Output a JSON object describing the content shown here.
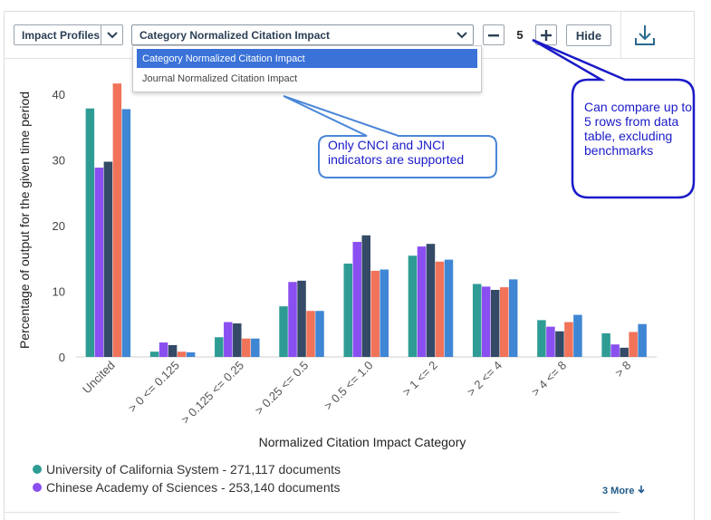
{
  "toolbar": {
    "impact_profiles_label": "Impact Profiles",
    "metric_selected": "Category Normalized Citation Impact",
    "stepper_value": "5",
    "minus_label": "−",
    "plus_label": "+",
    "hide_label": "Hide"
  },
  "dropdown": {
    "options": [
      "Category Normalized Citation Impact",
      "Journal Normalized Citation Impact"
    ]
  },
  "callouts": {
    "supported": "Only CNCI and JNCI indicators are supported",
    "compare": "Can compare up to 5 rows from data table, excluding benchmarks"
  },
  "chart_data": {
    "type": "bar",
    "ylabel": "Percentage of output for the given time period",
    "xlabel": "Normalized Citation Impact Category",
    "ylim": [
      0,
      43
    ],
    "yticks": [
      0,
      10,
      20,
      30,
      40
    ],
    "categories": [
      "Uncited",
      "> 0 <= 0.125",
      "> 0.125 <= 0.25",
      "> 0.25 <= 0.5",
      "> 0.5 <= 1.0",
      "> 1 <= 2",
      "> 2 <= 4",
      "> 4 <= 8",
      "> 8"
    ],
    "series": [
      {
        "name": "University of California System - 271,117 documents",
        "color": "#2e9c95",
        "values": [
          37.8,
          0.8,
          3.0,
          7.7,
          14.2,
          15.4,
          11.1,
          5.6,
          3.6
        ]
      },
      {
        "name": "Chinese Academy of Sciences - 253,140 documents",
        "color": "#8a4ff0",
        "values": [
          28.8,
          2.2,
          5.3,
          11.4,
          17.5,
          16.8,
          10.7,
          4.6,
          1.9
        ]
      },
      {
        "name": "",
        "color": "#344a66",
        "values": [
          29.7,
          1.8,
          5.1,
          11.6,
          18.5,
          17.2,
          10.2,
          3.9,
          1.4
        ]
      },
      {
        "name": "",
        "color": "#f0735a",
        "values": [
          41.6,
          0.8,
          2.8,
          7.0,
          13.1,
          14.5,
          10.6,
          5.3,
          3.8
        ]
      },
      {
        "name": "",
        "color": "#3f86d4",
        "values": [
          37.7,
          0.7,
          2.8,
          7.0,
          13.3,
          14.8,
          11.8,
          6.4,
          5.0
        ]
      }
    ]
  },
  "legend_more": "3 More"
}
